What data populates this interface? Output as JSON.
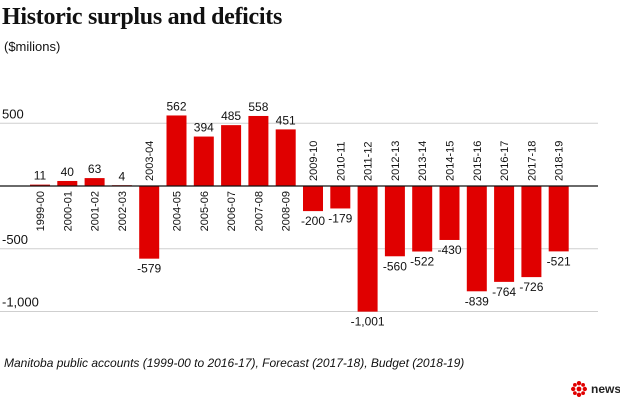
{
  "chart_data": {
    "type": "bar",
    "title": "Historic surplus and deficits",
    "ylabel": "($milions)",
    "xlabel": "",
    "ylim": [
      -1000,
      500
    ],
    "yticks": [
      500,
      -500,
      -1000
    ],
    "ytick_labels": [
      "500",
      "-500",
      "-1,000"
    ],
    "categories": [
      "1999-00",
      "2000-01",
      "2001-02",
      "2002-03",
      "2003-04",
      "2004-05",
      "2005-06",
      "2006-07",
      "2007-08",
      "2008-09",
      "2009-10",
      "2010-11",
      "2011-12",
      "2012-13",
      "2013-14",
      "2014-15",
      "2015-16",
      "2016-17",
      "2017-18",
      "2018-19"
    ],
    "values": [
      11,
      40,
      63,
      4,
      -579,
      562,
      394,
      485,
      558,
      451,
      -200,
      -179,
      -1001,
      -560,
      -522,
      -430,
      -839,
      -764,
      -726,
      -521
    ],
    "value_labels": [
      "11",
      "40",
      "63",
      "4",
      "-579",
      "562",
      "394",
      "485",
      "558",
      "451",
      "-200",
      "-179",
      "-1,001",
      "-560",
      "-522",
      "-430",
      "-839",
      "-764",
      "-726",
      "-521"
    ],
    "bar_color": "#e00000"
  },
  "source": "Manitoba public accounts (1999-00 to 2016-17), Forecast (2017-18), Budget (2018-19)",
  "brand": {
    "name": "news",
    "logo_color": "#e00000"
  }
}
